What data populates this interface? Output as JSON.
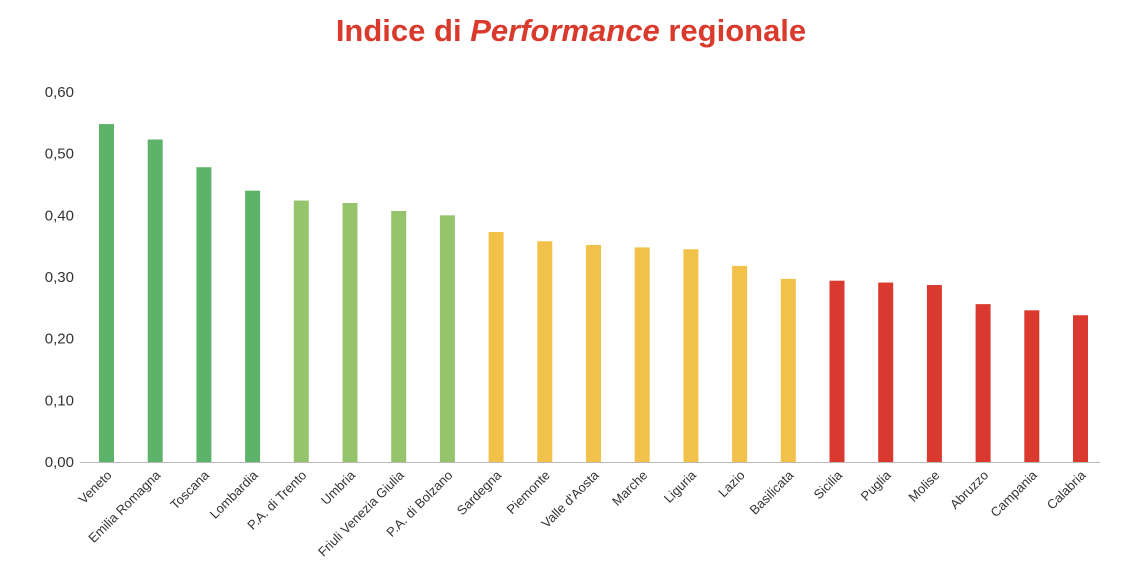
{
  "title": {
    "part1": "Indice di",
    "part2": "Performance",
    "part3": "regionale",
    "color": "#D93A2B"
  },
  "chart_data": {
    "type": "bar",
    "title": "Indice di Performance regionale",
    "ylim": [
      0,
      0.6
    ],
    "yticks": [
      "0,00",
      "0,10",
      "0,20",
      "0,30",
      "0,40",
      "0,50",
      "0,60"
    ],
    "grid": false,
    "categories": [
      "Veneto",
      "Emilia Romagna",
      "Toscana",
      "Lombardia",
      "P.A. di Trento",
      "Umbria",
      "Friuli Venezia Giulia",
      "P.A. di Bolzano",
      "Sardegna",
      "Piemonte",
      "Valle d'Aosta",
      "Marche",
      "Liguria",
      "Lazio",
      "Basilicata",
      "Sicilia",
      "Puglia",
      "Molise",
      "Abruzzo",
      "Campania",
      "Calabria"
    ],
    "values": [
      0.548,
      0.523,
      0.478,
      0.44,
      0.424,
      0.42,
      0.407,
      0.4,
      0.373,
      0.358,
      0.352,
      0.348,
      0.345,
      0.318,
      0.297,
      0.294,
      0.291,
      0.287,
      0.256,
      0.246,
      0.238
    ],
    "colors": [
      "#5DB36A",
      "#5DB36A",
      "#5DB36A",
      "#5DB36A",
      "#96C46D",
      "#96C46D",
      "#96C46D",
      "#96C46D",
      "#F2C14A",
      "#F2C14A",
      "#F2C14A",
      "#F2C14A",
      "#F2C14A",
      "#F2C14A",
      "#F2C14A",
      "#D9392E",
      "#D9392E",
      "#D9392E",
      "#D9392E",
      "#D9392E",
      "#D9392E"
    ]
  }
}
